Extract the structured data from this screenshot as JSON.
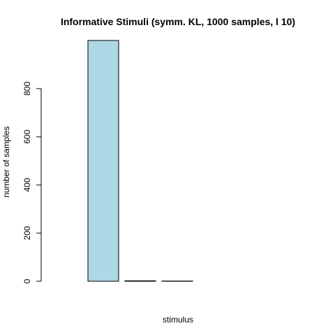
{
  "chart_data": {
    "type": "bar",
    "title": "Informative Stimuli (symm. KL, 1000 samples, l 10)",
    "xlabel": "stimulus",
    "ylabel": "number of samples",
    "categories": [
      "",
      "",
      "",
      "",
      "",
      "",
      ""
    ],
    "values": [
      0,
      1000,
      2,
      1,
      0,
      0,
      0
    ],
    "ylim": [
      0,
      1000
    ],
    "yticks": [
      0,
      200,
      400,
      600,
      800
    ],
    "ytick_labels": [
      "0",
      "200",
      "400",
      "600",
      "800"
    ],
    "bar_color": "#add8e6",
    "grid": false
  }
}
